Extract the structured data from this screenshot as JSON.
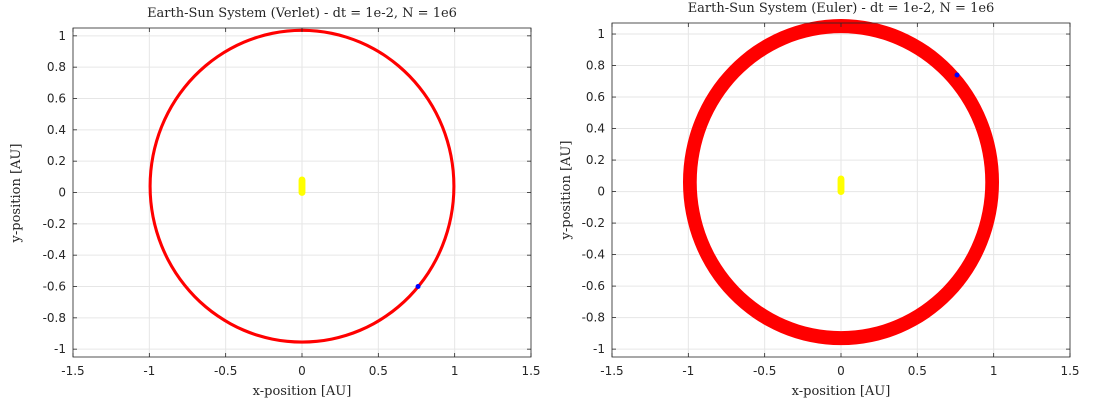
{
  "chart_data": [
    {
      "type": "scatter",
      "title": "Earth-Sun System (Verlet) - dt = 1e-2, N = 1e6",
      "xlabel": "x-position [AU]",
      "ylabel": "y-position [AU]",
      "xlim": [
        -1.5,
        1.5
      ],
      "ylim": [
        -1.05,
        1.05
      ],
      "xticks": [
        -1.5,
        -1,
        -0.5,
        0,
        0.5,
        1,
        1.5
      ],
      "yticks": [
        -1,
        -0.8,
        -0.6,
        -0.4,
        -0.2,
        0,
        0.2,
        0.4,
        0.6,
        0.8,
        1
      ],
      "grid": true,
      "colors": {
        "earth": "#ff0000",
        "sun": "#ffff00",
        "current": "#0000ff"
      },
      "series": [
        {
          "kind": "orbit-band",
          "center": [
            0,
            0.04
          ],
          "radius_inner": 0.985,
          "radius_outer": 1.005
        },
        {
          "kind": "sun-trail",
          "x": 0,
          "y_range": [
            0,
            0.08
          ],
          "width": 0.045
        },
        {
          "kind": "point",
          "x": 0.76,
          "y": -0.6
        }
      ]
    },
    {
      "type": "scatter",
      "title": "Earth-Sun System (Euler) - dt = 1e-2, N = 1e6",
      "xlabel": "x-position [AU]",
      "ylabel": "y-position [AU]",
      "xlim": [
        -1.5,
        1.5
      ],
      "ylim": [
        -1.05,
        1.07
      ],
      "xticks": [
        -1.5,
        -1,
        -0.5,
        0,
        0.5,
        1,
        1.5
      ],
      "yticks": [
        -1,
        -0.8,
        -0.6,
        -0.4,
        -0.2,
        0,
        0.2,
        0.4,
        0.6,
        0.8,
        1
      ],
      "grid": true,
      "colors": {
        "earth": "#ff0000",
        "sun": "#ffff00",
        "current": "#0000ff"
      },
      "series": [
        {
          "kind": "orbit-band",
          "center": [
            0,
            0.06
          ],
          "radius_inner": 0.945,
          "radius_outer": 1.035
        },
        {
          "kind": "sun-trail",
          "x": 0,
          "y_range": [
            0,
            0.08
          ],
          "width": 0.045
        },
        {
          "kind": "point",
          "x": 0.76,
          "y": 0.74
        }
      ]
    }
  ]
}
